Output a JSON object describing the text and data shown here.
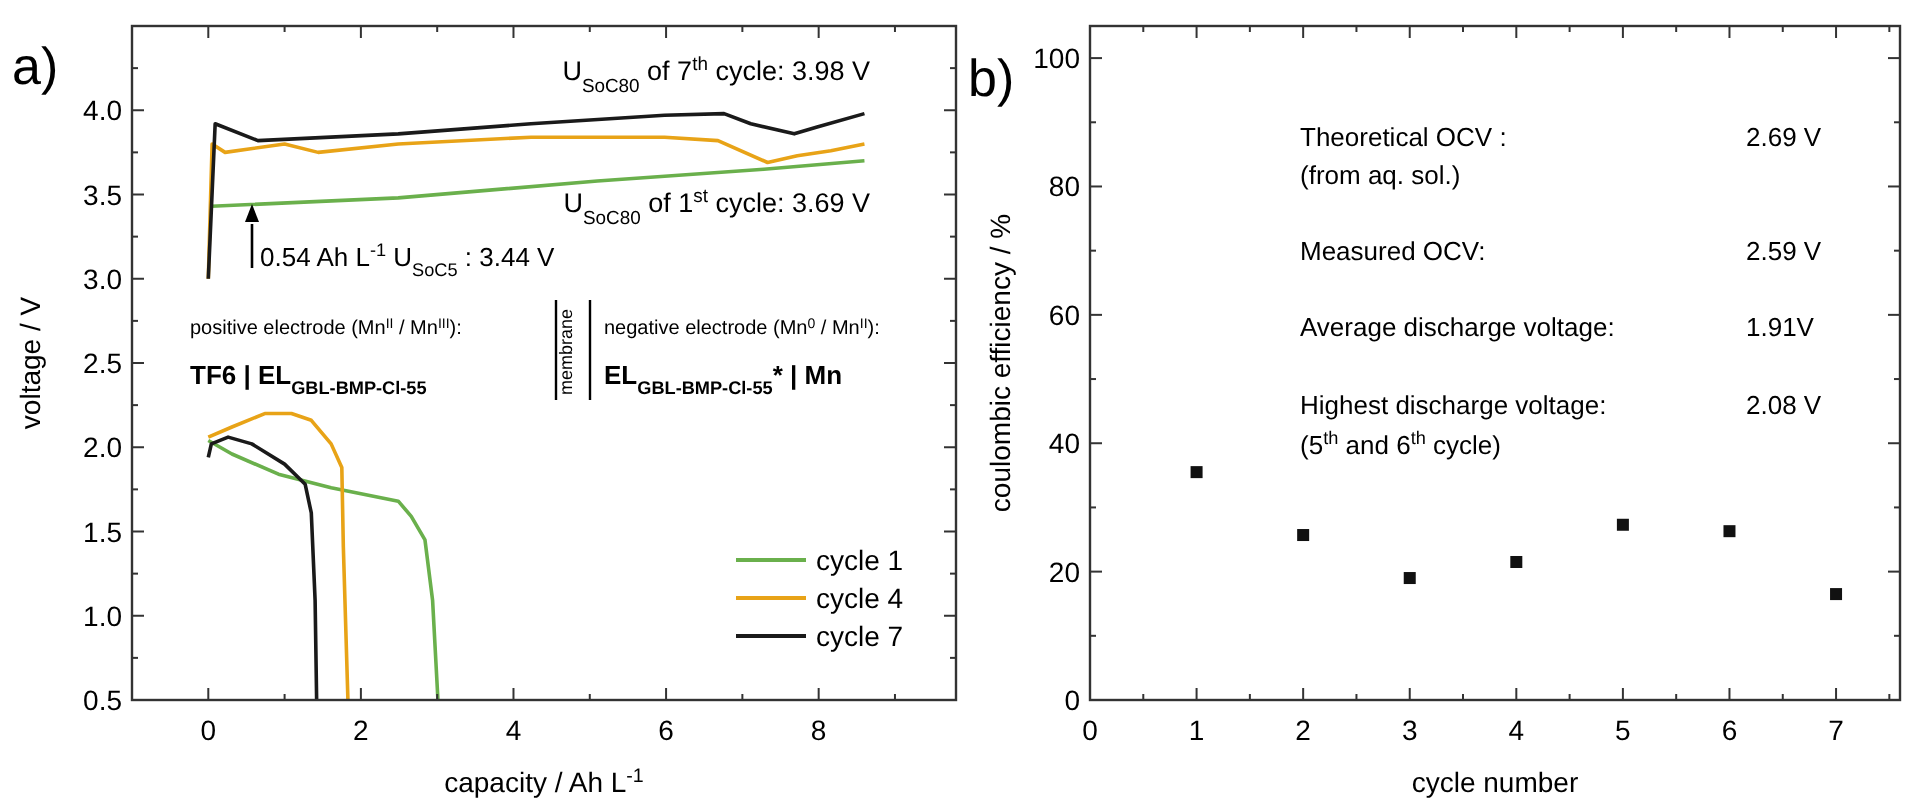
{
  "chart_data": [
    {
      "type": "line",
      "xlabel": "capacity / Ah L$^{-1}$",
      "ylabel": "voltage / V",
      "xlim": [
        -1,
        9.8
      ],
      "ylim": [
        0.5,
        4.5
      ],
      "xticks": [
        0,
        2,
        4,
        6,
        8
      ],
      "yticks": [
        0.5,
        {
          "value": 1,
          "label": "1.0"
        },
        1.5,
        {
          "value": 2,
          "label": "2.0"
        },
        2.5,
        {
          "value": 3,
          "label": "3.0"
        },
        3.5,
        {
          "value": 4,
          "label": "4.0"
        }
      ],
      "grid": false,
      "legend": "bottom right",
      "line_style": "solid",
      "series": [
        {
          "name": "cycle 1",
          "color": "#6ab04c",
          "x": [
            0.04,
            2.49,
            5.1,
            7.28,
            8.6,
            null,
            0,
            0.31,
            0.92,
            1.61,
            2.49,
            2.66,
            2.84,
            2.94,
            3.01
          ],
          "values": [
            3.43,
            3.48,
            3.58,
            3.65,
            3.7,
            null,
            2.04,
            1.96,
            1.84,
            1.76,
            1.68,
            1.59,
            1.45,
            1.09,
            0.5
          ]
        },
        {
          "name": "cycle 4",
          "color": "#e8a317",
          "x": [
            0,
            0.05,
            0.22,
            1.0,
            1.44,
            2.49,
            4.23,
            5.98,
            6.68,
            7.33,
            7.72,
            8.16,
            8.6,
            null,
            0,
            0.31,
            0.74,
            1.09,
            1.35,
            1.61,
            1.75,
            1.77,
            1.83
          ],
          "values": [
            3.0,
            3.8,
            3.75,
            3.8,
            3.75,
            3.8,
            3.84,
            3.84,
            3.82,
            3.69,
            3.73,
            3.76,
            3.8,
            null,
            2.06,
            2.12,
            2.2,
            2.2,
            2.16,
            2.02,
            1.88,
            1.41,
            0.5
          ]
        },
        {
          "name": "cycle 7",
          "color": "#1a1a1a",
          "x": [
            0,
            0.09,
            0.65,
            2.49,
            4.23,
            5.98,
            6.76,
            7.11,
            7.68,
            7.98,
            8.6,
            null,
            0,
            0.04,
            0.26,
            0.57,
            1.0,
            1.27,
            1.35,
            1.4,
            1.42
          ],
          "values": [
            3.0,
            3.92,
            3.82,
            3.86,
            3.92,
            3.97,
            3.98,
            3.92,
            3.86,
            3.9,
            3.98,
            null,
            1.94,
            2.02,
            2.06,
            2.02,
            1.9,
            1.78,
            1.61,
            1.09,
            0.5
          ]
        }
      ],
      "annotations": [
        "a)",
        "U$_{SoC80}$ of 7$^{th}$ cycle: 3.98 V",
        "U$_{SoC80}$ of 1$^{st}$ cycle: 3.69 V",
        "0.54 Ah L$^{-1}$ U$_{SoC5}$ : 3.44 V",
        "positive electrode (Mn$^{II}$ / Mn$^{III}$):",
        "TF6 | EL$_{GBL-BMP-Cl-55}$",
        "membrane",
        "negative electrode (Mn$^{0}$ / Mn$^{II}$):",
        "EL$_{GBL-BMP-Cl-55}$* | Mn"
      ]
    },
    {
      "type": "scatter",
      "xlabel": "cycle number",
      "ylabel": "coulombic efficiency / %",
      "xlim": [
        0,
        7.6
      ],
      "ylim": [
        0,
        105
      ],
      "xticks": [
        0,
        1,
        2,
        3,
        4,
        5,
        6,
        7
      ],
      "yticks": [
        0,
        20,
        40,
        60,
        80,
        100
      ],
      "grid": false,
      "marker": "square",
      "series": [
        {
          "color": "#111111",
          "x": [
            1,
            2,
            3,
            4,
            5,
            6,
            7
          ],
          "values": [
            35.5,
            25.7,
            19,
            21.5,
            27.3,
            26.3,
            16.5
          ]
        }
      ],
      "annotations": [
        "b)",
        "Theoretical OCV :",
        "(from aq. sol.)",
        "2.69 V",
        "Measured OCV:",
        "2.59 V",
        "Average discharge voltage:",
        "1.91V",
        "Highest discharge voltage:",
        "(5$^{th}$ and 6$^{th}$ cycle)",
        "2.08 V"
      ]
    }
  ]
}
